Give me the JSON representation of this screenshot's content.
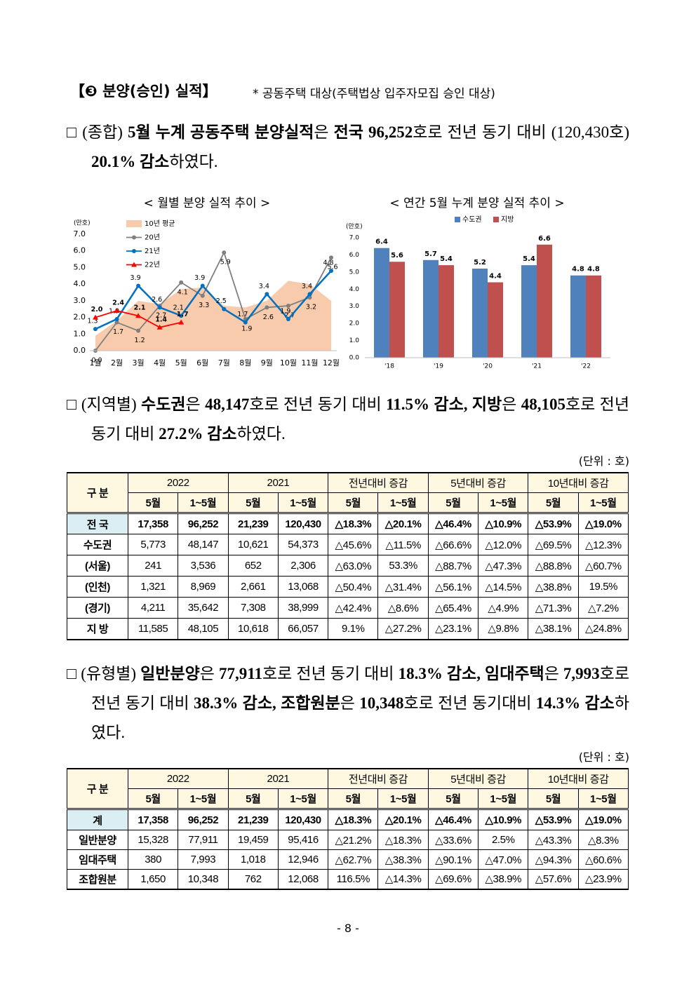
{
  "header": {
    "title": "【❸ 분양(승인) 실적】",
    "note": "* 공동주택 대상(주택법상 입주자모집 승인 대상)"
  },
  "paragraphs": [
    [
      {
        "text": "□ (종합) ",
        "bold": false
      },
      {
        "text": "5월 누계 공동주택 분양실적",
        "bold": true
      },
      {
        "text": "은 ",
        "bold": false
      },
      {
        "text": "전국 96,252",
        "bold": true
      },
      {
        "text": "호로 전년 동기 대비 (120,430호) ",
        "bold": false
      },
      {
        "text": "20.1% 감소",
        "bold": true
      },
      {
        "text": "하였다.",
        "bold": false
      }
    ],
    [
      {
        "text": "□ (지역별) ",
        "bold": false
      },
      {
        "text": "수도권",
        "bold": true
      },
      {
        "text": "은 ",
        "bold": false
      },
      {
        "text": "48,147",
        "bold": true
      },
      {
        "text": "호로 전년 동기 대비 ",
        "bold": false
      },
      {
        "text": "11.5% 감소, 지방",
        "bold": true
      },
      {
        "text": "은 ",
        "bold": false
      },
      {
        "text": "48,105",
        "bold": true
      },
      {
        "text": "호로 전년 동기 대비 ",
        "bold": false
      },
      {
        "text": "27.2% 감소",
        "bold": true
      },
      {
        "text": "하였다.",
        "bold": false
      }
    ],
    [
      {
        "text": "□ (유형별) ",
        "bold": false
      },
      {
        "text": "일반분양",
        "bold": true
      },
      {
        "text": "은 ",
        "bold": false
      },
      {
        "text": "77,911",
        "bold": true
      },
      {
        "text": "호로 전년 동기 대비 ",
        "bold": false
      },
      {
        "text": "18.3% 감소, 임대주택",
        "bold": true
      },
      {
        "text": "은 ",
        "bold": false
      },
      {
        "text": "7,993",
        "bold": true
      },
      {
        "text": "호로 전년 동기 대비 ",
        "bold": false
      },
      {
        "text": "38.3% 감소, 조합원분",
        "bold": true
      },
      {
        "text": "은 ",
        "bold": false
      },
      {
        "text": "10,348",
        "bold": true
      },
      {
        "text": "호로 전년 동기대비 ",
        "bold": false
      },
      {
        "text": "14.3% 감소",
        "bold": true
      },
      {
        "text": "하였다.",
        "bold": false
      }
    ]
  ],
  "chart_data": [
    {
      "type": "line",
      "title": "< 월별 분양 실적 추이 >",
      "y_label": "(만호)",
      "categories": [
        "1월",
        "2월",
        "3월",
        "4월",
        "5월",
        "6월",
        "7월",
        "8월",
        "9월",
        "10월",
        "11월",
        "12월"
      ],
      "ylim": [
        0,
        7
      ],
      "yticks": [
        {
          "value": 0,
          "label": "0.0"
        },
        {
          "value": 1,
          "label": "1.0"
        },
        {
          "value": 2,
          "label": "2.0"
        },
        {
          "value": 3,
          "label": "3.0"
        },
        {
          "value": 4,
          "label": "4.0"
        },
        {
          "value": 5,
          "label": "5.0"
        },
        {
          "value": 6,
          "label": "6.0"
        },
        {
          "value": 7,
          "label": "7.0"
        }
      ],
      "grid": false,
      "series": [
        {
          "name": "10년 평균",
          "kind": "area",
          "color": "#f8cbad",
          "values": [
            0.9,
            1.8,
            3.0,
            2.8,
            3.7,
            3.8,
            2.7,
            2.6,
            3.0,
            4.2,
            4.0,
            3.0
          ]
        },
        {
          "name": "20년",
          "kind": "line",
          "marker": "circle",
          "color": "#7f7f7f",
          "values": [
            0,
            1.7,
            1.2,
            2.7,
            4.1,
            3.3,
            5.9,
            1.9,
            2.6,
            2.7,
            3.2,
            5.6
          ],
          "value_labels": [
            "0.0",
            "1.7",
            "1.2",
            "2.7",
            "4.1",
            "3.3",
            "5.9",
            "1.9",
            "2.6",
            "2.7",
            "3.2",
            "5.6"
          ]
        },
        {
          "name": "21년",
          "kind": "line",
          "marker": "circle",
          "color": "#0070c0",
          "values": [
            1.3,
            1.9,
            3.9,
            2.6,
            2.1,
            3.9,
            2.5,
            1.7,
            3.4,
            1.9,
            3.4,
            4.8
          ],
          "value_labels": [
            "1.3",
            "1.9",
            "3.9",
            "2.6",
            "2.1",
            "3.9",
            "2.5",
            "1.7",
            "3.4",
            "1.9",
            "3.4",
            "4.8"
          ]
        },
        {
          "name": "22년",
          "kind": "line",
          "marker": "triangle",
          "color": "#ff0000",
          "values": [
            2,
            2.4,
            2.1,
            1.4,
            1.7,
            null,
            null,
            null,
            null,
            null,
            null,
            null
          ],
          "value_labels": [
            "2.0",
            "2.4",
            "2.1",
            "1.4",
            "1.7",
            null,
            null,
            null,
            null,
            null,
            null,
            null
          ]
        }
      ]
    },
    {
      "type": "bar",
      "title": "< 연간 5월 누계 분양 실적 추이 >",
      "y_label": "(만호)",
      "categories": [
        "'18",
        "'19",
        "'20",
        "'21",
        "'22"
      ],
      "ylim": [
        0,
        7
      ],
      "yticks": [
        {
          "value": 0,
          "label": "0.0"
        },
        {
          "value": 1,
          "label": "1.0"
        },
        {
          "value": 2,
          "label": "2.0"
        },
        {
          "value": 3,
          "label": "3.0"
        },
        {
          "value": 4,
          "label": "4.0"
        },
        {
          "value": 5,
          "label": "5.0"
        },
        {
          "value": 6,
          "label": "6.0"
        },
        {
          "value": 7,
          "label": "7.0"
        }
      ],
      "grid": false,
      "series": [
        {
          "name": "수도권",
          "color": "#4f81bd",
          "values": [
            6.4,
            5.7,
            5.2,
            5.4,
            4.8
          ]
        },
        {
          "name": "지방",
          "color": "#c0504d",
          "values": [
            5.6,
            5.4,
            4.4,
            6.6,
            4.8
          ]
        }
      ]
    }
  ],
  "tables": [
    {
      "unit": "(단위 : 호)",
      "corner": "구 분",
      "groups": [
        "2022",
        "2021",
        "전년대비 증감",
        "5년대비 증감",
        "10년대비 증감"
      ],
      "subheaders": [
        "5월",
        "1~5월",
        "5월",
        "1~5월",
        "5월",
        "1~5월",
        "5월",
        "1~5월",
        "5월",
        "1~5월"
      ],
      "rows": [
        {
          "label": "전 국",
          "total": true,
          "cells": [
            "17,358",
            "96,252",
            "21,239",
            "120,430",
            "△18.3%",
            "△20.1%",
            "△46.4%",
            "△10.9%",
            "△53.9%",
            "△19.0%"
          ]
        },
        {
          "label": "수도권",
          "total": false,
          "cells": [
            "5,773",
            "48,147",
            "10,621",
            "54,373",
            "△45.6%",
            "△11.5%",
            "△66.6%",
            "△12.0%",
            "△69.5%",
            "△12.3%"
          ]
        },
        {
          "label": "(서울)",
          "total": false,
          "cells": [
            "241",
            "3,536",
            "652",
            "2,306",
            "△63.0%",
            "53.3%",
            "△88.7%",
            "△47.3%",
            "△88.8%",
            "△60.7%"
          ]
        },
        {
          "label": "(인천)",
          "total": false,
          "cells": [
            "1,321",
            "8,969",
            "2,661",
            "13,068",
            "△50.4%",
            "△31.4%",
            "△56.1%",
            "△14.5%",
            "△38.8%",
            "19.5%"
          ]
        },
        {
          "label": "(경기)",
          "total": false,
          "cells": [
            "4,211",
            "35,642",
            "7,308",
            "38,999",
            "△42.4%",
            "△8.6%",
            "△65.4%",
            "△4.9%",
            "△71.3%",
            "△7.2%"
          ]
        },
        {
          "label": "지 방",
          "total": false,
          "cells": [
            "11,585",
            "48,105",
            "10,618",
            "66,057",
            "9.1%",
            "△27.2%",
            "△23.1%",
            "△9.8%",
            "△38.1%",
            "△24.8%"
          ]
        }
      ]
    },
    {
      "unit": "(단위 : 호)",
      "corner": "구 분",
      "groups": [
        "2022",
        "2021",
        "전년대비 증감",
        "5년대비 증감",
        "10년대비 증감"
      ],
      "subheaders": [
        "5월",
        "1~5월",
        "5월",
        "1~5월",
        "5월",
        "1~5월",
        "5월",
        "1~5월",
        "5월",
        "1~5월"
      ],
      "rows": [
        {
          "label": "계",
          "total": true,
          "cells": [
            "17,358",
            "96,252",
            "21,239",
            "120,430",
            "△18.3%",
            "△20.1%",
            "△46.4%",
            "△10.9%",
            "△53.9%",
            "△19.0%"
          ]
        },
        {
          "label": "일반분양",
          "total": false,
          "cells": [
            "15,328",
            "77,911",
            "19,459",
            "95,416",
            "△21.2%",
            "△18.3%",
            "△33.6%",
            "2.5%",
            "△43.3%",
            "△8.3%"
          ]
        },
        {
          "label": "임대주택",
          "total": false,
          "cells": [
            "380",
            "7,993",
            "1,018",
            "12,946",
            "△62.7%",
            "△38.3%",
            "△90.1%",
            "△47.0%",
            "△94.3%",
            "△60.6%"
          ]
        },
        {
          "label": "조합원분",
          "total": false,
          "cells": [
            "1,650",
            "10,348",
            "762",
            "12,068",
            "116.5%",
            "△14.3%",
            "△69.6%",
            "△38.9%",
            "△57.6%",
            "△23.9%"
          ]
        }
      ]
    }
  ],
  "page_number": "- 8 -"
}
